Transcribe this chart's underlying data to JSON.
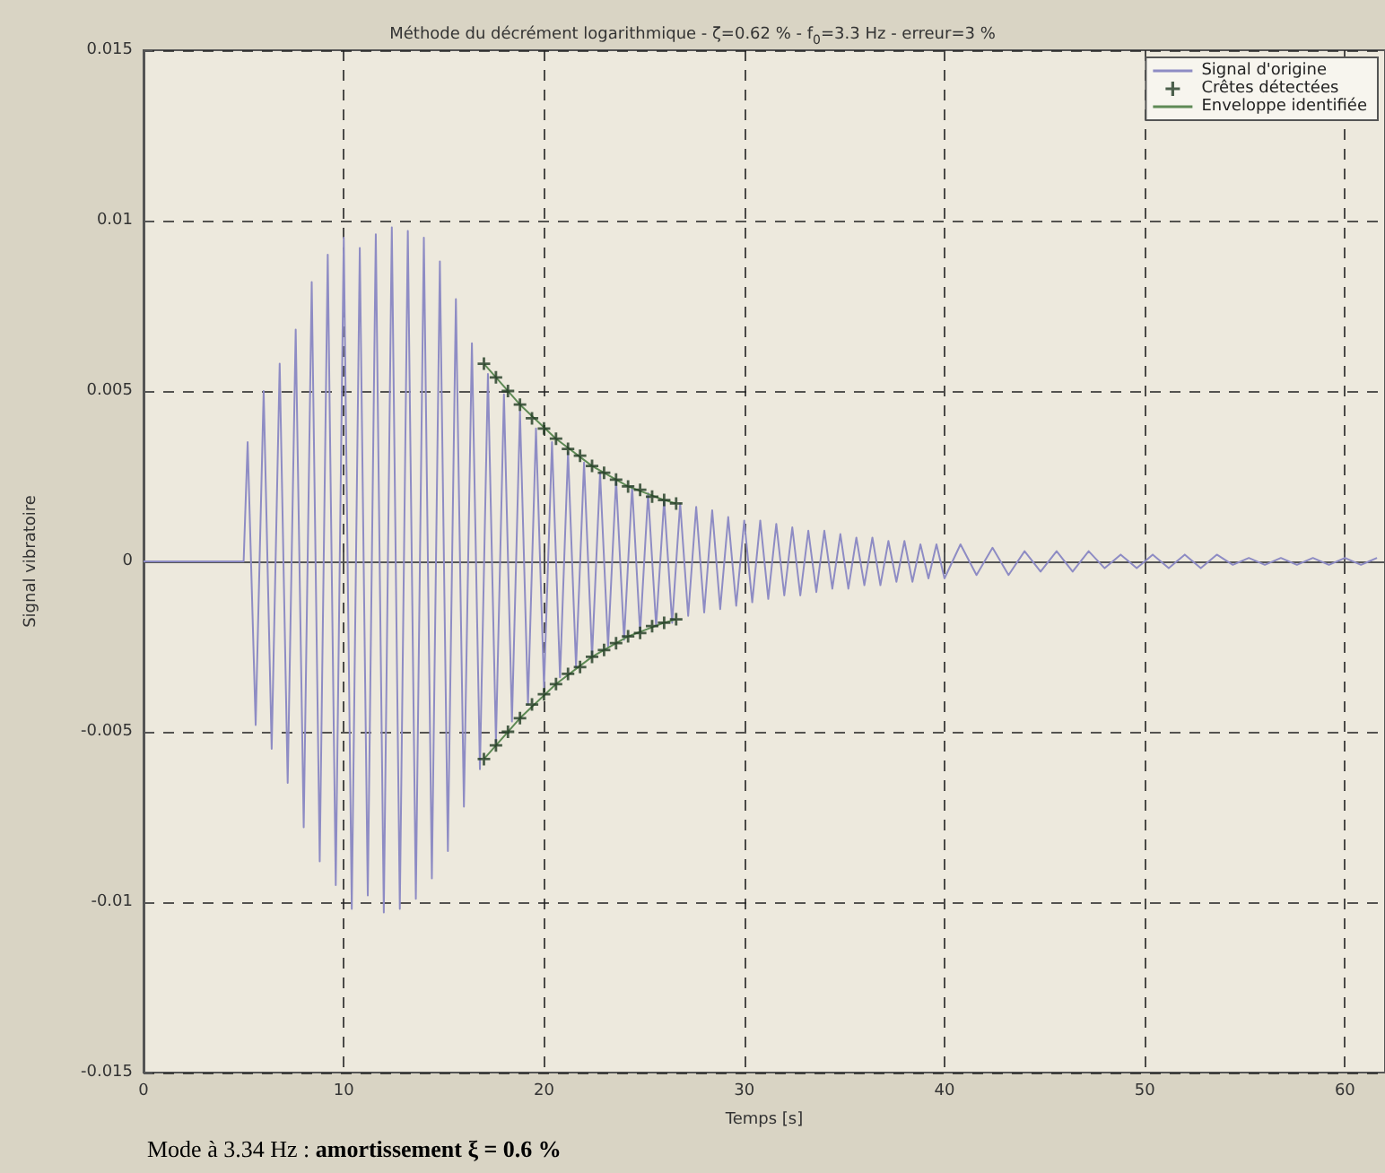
{
  "chart_data": {
    "type": "line",
    "title": "Méthode du décrément logarithmique - ζ=0.62 % - f$_{0}$=3.3 Hz - erreur=3 %",
    "xlabel": "Temps [s]",
    "ylabel": "Signal vibratoire",
    "annotations": [
      "Mode à 3.34 Hz : ",
      "amortissement ξ = 0.6 %"
    ],
    "xlim": [
      0,
      62
    ],
    "xticks": [
      0,
      10,
      20,
      30,
      40,
      50,
      60
    ],
    "ylim": [
      -0.015,
      0.015
    ],
    "yticks": [
      -0.015,
      -0.01,
      -0.005,
      0,
      0.005,
      0.01,
      0.015
    ],
    "grid": true,
    "legend": "top right",
    "line_style": "solid",
    "series": [
      {
        "name": "Signal d'origine",
        "color": "#8e8cc4",
        "marker": "none",
        "x": [
          0,
          2,
          4,
          5,
          5.2,
          5.6,
          6.0,
          6.4,
          6.8,
          7.2,
          7.6,
          8.0,
          8.4,
          8.8,
          9.2,
          9.6,
          10.0,
          10.4,
          10.8,
          11.2,
          11.6,
          12.0,
          12.4,
          12.8,
          13.2,
          13.6,
          14.0,
          14.4,
          14.8,
          15.2,
          15.6,
          16.0,
          16.4,
          16.8,
          17.2,
          17.6,
          18.0,
          18.4,
          18.8,
          19.2,
          19.6,
          20.0,
          20.4,
          20.8,
          21.2,
          21.6,
          22.0,
          22.4,
          22.8,
          23.2,
          23.6,
          24.0,
          24.4,
          24.8,
          25.2,
          25.6,
          26.0,
          26.4,
          26.8,
          27.2,
          27.6,
          28.0,
          28.4,
          28.8,
          29.2,
          29.6,
          30.0,
          30.4,
          30.8,
          31.2,
          31.6,
          32.0,
          32.4,
          32.8,
          33.2,
          33.6,
          34.0,
          34.4,
          34.8,
          35.2,
          35.6,
          36.0,
          36.4,
          36.8,
          37.2,
          37.6,
          38.0,
          38.4,
          38.8,
          39.2,
          39.6,
          40.0,
          40.8,
          41.6,
          42.4,
          43.2,
          44.0,
          44.8,
          45.6,
          46.4,
          47.2,
          48.0,
          48.8,
          49.6,
          50.4,
          51.2,
          52.0,
          52.8,
          53.6,
          54.4,
          55.2,
          56.0,
          56.8,
          57.6,
          58.4,
          59.2,
          60.0,
          60.8,
          61.6
        ],
        "values": [
          0,
          0,
          0,
          0,
          0.0035,
          -0.0048,
          0.005,
          -0.0055,
          0.0058,
          -0.0065,
          0.0068,
          -0.0078,
          0.0082,
          -0.0088,
          0.009,
          -0.0095,
          0.0095,
          -0.0102,
          0.0092,
          -0.0098,
          0.0096,
          -0.0103,
          0.0098,
          -0.0102,
          0.0097,
          -0.0099,
          0.0095,
          -0.0093,
          0.0088,
          -0.0085,
          0.0077,
          -0.0072,
          0.0064,
          -0.0061,
          0.0055,
          -0.0053,
          0.0049,
          -0.0047,
          0.0044,
          -0.0042,
          0.0039,
          -0.0037,
          0.0035,
          -0.0034,
          0.0032,
          -0.0031,
          0.0029,
          -0.0028,
          0.0026,
          -0.0025,
          0.0024,
          -0.0023,
          0.0022,
          -0.0021,
          0.002,
          -0.0019,
          0.0018,
          -0.0018,
          0.0017,
          -0.0016,
          0.0016,
          -0.0015,
          0.0015,
          -0.0014,
          0.0013,
          -0.0013,
          0.0012,
          -0.0012,
          0.0012,
          -0.0011,
          0.0011,
          -0.001,
          0.001,
          -0.001,
          0.0009,
          -0.0009,
          0.0009,
          -0.0008,
          0.0008,
          -0.0008,
          0.0007,
          -0.0007,
          0.0007,
          -0.0007,
          0.0006,
          -0.0006,
          0.0006,
          -0.0006,
          0.0005,
          -0.0005,
          0.0005,
          -0.0005,
          0.0005,
          -0.0004,
          0.0004,
          -0.0004,
          0.0003,
          -0.0003,
          0.0003,
          -0.0003,
          0.0003,
          -0.0002,
          0.0002,
          -0.0002,
          0.0002,
          -0.0002,
          0.0002,
          -0.0002,
          0.0002,
          -0.0001,
          0.0001,
          -0.0001,
          0.0001,
          -0.0001,
          0.0001,
          -0.0001,
          0.0001,
          -0.0001,
          0.0001
        ]
      },
      {
        "name": "Crêtes détectées",
        "type": "scatter",
        "color": "#1f3a22",
        "marker": "cross",
        "x": [
          17.0,
          17.6,
          18.2,
          18.8,
          19.4,
          20.0,
          20.6,
          21.2,
          21.8,
          22.4,
          23.0,
          23.6,
          24.2,
          24.8,
          25.4,
          26.0,
          26.6,
          17.0,
          17.6,
          18.2,
          18.8,
          19.4,
          20.0,
          20.6,
          21.2,
          21.8,
          22.4,
          23.0,
          23.6,
          24.2,
          24.8,
          25.4,
          26.0,
          26.6
        ],
        "values": [
          0.0058,
          0.0054,
          0.005,
          0.0046,
          0.0042,
          0.0039,
          0.0036,
          0.0033,
          0.0031,
          0.0028,
          0.0026,
          0.0024,
          0.0022,
          0.0021,
          0.0019,
          0.0018,
          0.0017,
          -0.0058,
          -0.0054,
          -0.005,
          -0.0046,
          -0.0042,
          -0.0039,
          -0.0036,
          -0.0033,
          -0.0031,
          -0.0028,
          -0.0026,
          -0.0024,
          -0.0022,
          -0.0021,
          -0.0019,
          -0.0018,
          -0.0017
        ]
      },
      {
        "name": "Enveloppe identifiée",
        "color": "#5e8a55",
        "marker": "none",
        "x": [
          17.0,
          18.8,
          20.6,
          22.4,
          24.2,
          26.0,
          26.6,
          null,
          17.0,
          18.8,
          20.6,
          22.4,
          24.2,
          26.0,
          26.6
        ],
        "values": [
          0.0058,
          0.0046,
          0.0036,
          0.0028,
          0.0022,
          0.0018,
          0.0017,
          null,
          -0.0058,
          -0.0046,
          -0.0036,
          -0.0028,
          -0.0022,
          -0.0018,
          -0.0017
        ]
      }
    ]
  }
}
